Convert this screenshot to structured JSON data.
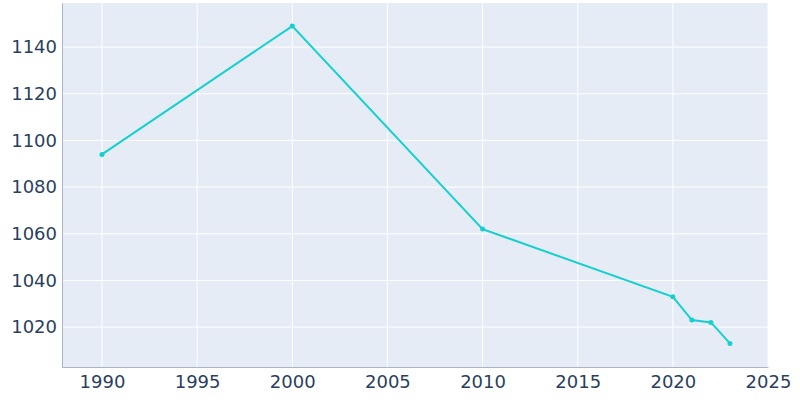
{
  "chart_data": {
    "type": "line",
    "x": [
      1990,
      2000,
      2010,
      2020,
      2021,
      2022,
      2023
    ],
    "values": [
      1094,
      1149,
      1062,
      1033,
      1023,
      1022,
      1013
    ],
    "color": "#17cfcf",
    "marker": "circle",
    "xlim": [
      1987.9,
      2025
    ],
    "xticks": [
      1990,
      1995,
      2000,
      2005,
      2010,
      2015,
      2020,
      2025
    ],
    "ylim": [
      1002.9,
      1158.9
    ],
    "yticks": [
      1020,
      1040,
      1060,
      1080,
      1100,
      1120,
      1140
    ],
    "grid": true
  }
}
